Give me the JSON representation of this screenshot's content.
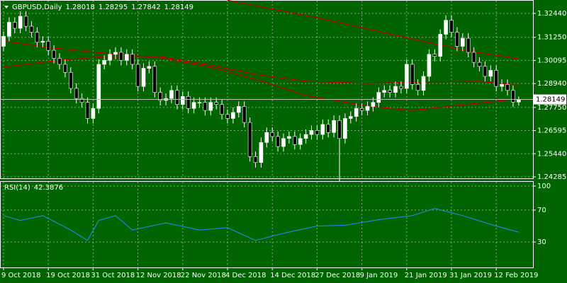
{
  "chart_data": [
    {
      "type": "candlestick",
      "title": "GBPUSD,Daily",
      "categories": [
        "9 Oct 2018",
        null,
        null,
        null,
        null,
        null,
        null,
        null,
        "19 Oct 2018",
        null,
        null,
        null,
        null,
        null,
        null,
        null,
        "31 Oct 2018",
        null,
        null,
        null,
        null,
        null,
        null,
        null,
        "12 Nov 2018",
        null,
        null,
        null,
        null,
        null,
        null,
        null,
        "22 Nov 2018",
        null,
        null,
        null,
        null,
        null,
        null,
        null,
        "4 Dec 2018",
        null,
        null,
        null,
        null,
        null,
        null,
        null,
        "14 Dec 2018",
        null,
        null,
        null,
        null,
        null,
        null,
        null,
        "27 Dec 2018",
        null,
        null,
        null,
        null,
        null,
        null,
        null,
        "9 Jan 2019",
        null,
        null,
        null,
        null,
        null,
        null,
        null,
        "21 Jan 2019",
        null,
        null,
        null,
        null,
        null,
        null,
        null,
        "31 Jan 2019",
        null,
        null,
        null,
        null,
        null,
        null,
        null,
        "12 Feb 2019",
        null,
        null,
        null,
        null
      ],
      "ohlc": [
        [
          1.308,
          1.3155,
          1.3055,
          1.313
        ],
        [
          1.313,
          1.3225,
          1.3105,
          1.32
        ],
        [
          1.32,
          1.3225,
          1.3145,
          1.317
        ],
        [
          1.317,
          1.3255,
          1.3145,
          1.323
        ],
        [
          1.323,
          1.3255,
          1.3155,
          1.318
        ],
        [
          1.318,
          1.3205,
          1.3125,
          1.315
        ],
        [
          1.315,
          1.3175,
          1.3075,
          1.31
        ],
        [
          1.31,
          1.313,
          1.3075,
          1.3105
        ],
        [
          1.3105,
          1.313,
          1.3035,
          1.306
        ],
        [
          1.306,
          1.3085,
          1.2995,
          1.302
        ],
        [
          1.302,
          1.3045,
          1.2965,
          1.299
        ],
        [
          1.299,
          1.3015,
          1.2925,
          1.295
        ],
        [
          1.295,
          1.2975,
          1.2845,
          1.287
        ],
        [
          1.287,
          1.2895,
          1.2795,
          1.282
        ],
        [
          1.282,
          1.2845,
          1.2775,
          1.28
        ],
        [
          1.28,
          1.2825,
          1.2695,
          1.272
        ],
        [
          1.272,
          1.2795,
          1.2695,
          1.277
        ],
        [
          1.277,
          1.3015,
          1.2745,
          1.299
        ],
        [
          1.299,
          1.3035,
          1.2965,
          1.301
        ],
        [
          1.301,
          1.3065,
          1.2985,
          1.304
        ],
        [
          1.304,
          1.3075,
          1.3015,
          1.305
        ],
        [
          1.305,
          1.3075,
          1.2985,
          1.301
        ],
        [
          1.301,
          1.3065,
          1.2985,
          1.304
        ],
        [
          1.304,
          1.3065,
          1.2965,
          1.299
        ],
        [
          1.299,
          1.3015,
          1.2855,
          1.288
        ],
        [
          1.288,
          1.2995,
          1.2855,
          1.297
        ],
        [
          1.297,
          1.3005,
          1.2945,
          1.298
        ],
        [
          1.298,
          1.3005,
          1.2825,
          1.285
        ],
        [
          1.285,
          1.2875,
          1.2785,
          1.281
        ],
        [
          1.281,
          1.2845,
          1.2785,
          1.282
        ],
        [
          1.282,
          1.2885,
          1.2795,
          1.286
        ],
        [
          1.286,
          1.2885,
          1.2765,
          1.279
        ],
        [
          1.279,
          1.2855,
          1.2765,
          1.283
        ],
        [
          1.283,
          1.2855,
          1.2745,
          1.277
        ],
        [
          1.277,
          1.2825,
          1.2745,
          1.28
        ],
        [
          1.28,
          1.2825,
          1.2775,
          1.28
        ],
        [
          1.28,
          1.2825,
          1.2735,
          1.276
        ],
        [
          1.276,
          1.2825,
          1.2735,
          1.28
        ],
        [
          1.28,
          1.2825,
          1.2765,
          1.279
        ],
        [
          1.279,
          1.2815,
          1.2715,
          1.274
        ],
        [
          1.274,
          1.2765,
          1.2695,
          1.272
        ],
        [
          1.272,
          1.2775,
          1.2695,
          1.275
        ],
        [
          1.275,
          1.2805,
          1.2725,
          1.278
        ],
        [
          1.278,
          1.2805,
          1.2675,
          1.27
        ],
        [
          1.27,
          1.2725,
          1.2505,
          1.253
        ],
        [
          1.253,
          1.2555,
          1.2475,
          1.25
        ],
        [
          1.25,
          1.2625,
          1.2475,
          1.26
        ],
        [
          1.26,
          1.2675,
          1.2575,
          1.265
        ],
        [
          1.265,
          1.2675,
          1.2605,
          1.263
        ],
        [
          1.263,
          1.2655,
          1.2555,
          1.258
        ],
        [
          1.258,
          1.2645,
          1.2555,
          1.262
        ],
        [
          1.262,
          1.2655,
          1.2595,
          1.263
        ],
        [
          1.263,
          1.2655,
          1.2565,
          1.259
        ],
        [
          1.259,
          1.2645,
          1.2565,
          1.262
        ],
        [
          1.262,
          1.2665,
          1.2595,
          1.264
        ],
        [
          1.264,
          1.2685,
          1.2615,
          1.266
        ],
        [
          1.266,
          1.2685,
          1.2615,
          1.264
        ],
        [
          1.264,
          1.2715,
          1.2615,
          1.269
        ],
        [
          1.269,
          1.2715,
          1.2625,
          1.265
        ],
        [
          1.265,
          1.2735,
          1.2625,
          1.271
        ],
        [
          1.271,
          1.2735,
          1.2405,
          1.262
        ],
        [
          1.262,
          1.2745,
          1.2595,
          1.272
        ],
        [
          1.272,
          1.2755,
          1.2695,
          1.273
        ],
        [
          1.273,
          1.2795,
          1.2705,
          1.277
        ],
        [
          1.277,
          1.2795,
          1.2735,
          1.276
        ],
        [
          1.276,
          1.2805,
          1.2735,
          1.278
        ],
        [
          1.278,
          1.2825,
          1.2755,
          1.28
        ],
        [
          1.28,
          1.2875,
          1.2775,
          1.285
        ],
        [
          1.285,
          1.2885,
          1.2825,
          1.286
        ],
        [
          1.286,
          1.2885,
          1.2825,
          1.285
        ],
        [
          1.285,
          1.2905,
          1.2825,
          1.288
        ],
        [
          1.288,
          1.2905,
          1.2845,
          1.287
        ],
        [
          1.287,
          1.3015,
          1.2845,
          1.299
        ],
        [
          1.299,
          1.3015,
          1.2865,
          1.289
        ],
        [
          1.289,
          1.2915,
          1.2835,
          1.286
        ],
        [
          1.286,
          1.2955,
          1.2835,
          1.293
        ],
        [
          1.293,
          1.3065,
          1.2905,
          1.304
        ],
        [
          1.304,
          1.3065,
          1.3005,
          1.303
        ],
        [
          1.303,
          1.3165,
          1.3005,
          1.314
        ],
        [
          1.314,
          1.3235,
          1.3115,
          1.321
        ],
        [
          1.321,
          1.3235,
          1.3125,
          1.315
        ],
        [
          1.315,
          1.3175,
          1.3055,
          1.308
        ],
        [
          1.308,
          1.3145,
          1.3055,
          1.312
        ],
        [
          1.312,
          1.3145,
          1.3025,
          1.305
        ],
        [
          1.305,
          1.3075,
          1.2975,
          1.3
        ],
        [
          1.3,
          1.3025,
          1.2955,
          1.298
        ],
        [
          1.298,
          1.3005,
          1.2905,
          1.293
        ],
        [
          1.293,
          1.2985,
          1.2905,
          1.296
        ],
        [
          1.296,
          1.2985,
          1.2855,
          1.288
        ],
        [
          1.288,
          1.2915,
          1.2855,
          1.289
        ],
        [
          1.289,
          1.2915,
          1.2835,
          1.286
        ],
        [
          1.286,
          1.2885,
          1.2777,
          1.2802
        ],
        [
          1.28018,
          1.28295,
          1.27842,
          1.28149
        ]
      ],
      "up_color": "#ffffff",
      "down_color": "#000000",
      "wick_color": "#ffffff",
      "overlays": [
        {
          "color": "#c00000",
          "x": [
            40,
            56,
            73,
            83,
            92
          ],
          "values": [
            1.331,
            1.3223,
            1.3117,
            1.3057,
            1.3018
          ]
        },
        {
          "color": "#c00000",
          "x": [
            0,
            9,
            18,
            28,
            37,
            45,
            54,
            65,
            75,
            85,
            92
          ],
          "values": [
            1.2976,
            1.3007,
            1.3029,
            1.3029,
            1.2986,
            1.294,
            1.2905,
            1.2895,
            1.2902,
            1.2905,
            1.2887
          ]
        },
        {
          "color": "#c00000",
          "x": [
            0,
            9,
            18,
            28,
            37,
            45,
            54,
            65,
            73,
            80,
            92
          ],
          "values": [
            1.3106,
            1.3071,
            1.3046,
            1.3022,
            1.2976,
            1.2916,
            1.2835,
            1.2782,
            1.276,
            1.2782,
            1.2817
          ]
        }
      ],
      "ylim": [
        1.24214,
        1.33111
      ],
      "yticks": [
        {
          "value": 1.3244,
          "label": "1.32440"
        },
        {
          "value": 1.3125,
          "label": "1.31250"
        },
        {
          "value": 1.30095,
          "label": "1.30095"
        },
        {
          "value": 1.2894,
          "label": "1.28940"
        },
        {
          "value": 1.2775,
          "label": "1.27750"
        },
        {
          "value": 1.26595,
          "label": "1.26595"
        },
        {
          "value": 1.2544,
          "label": "1.25440"
        },
        {
          "value": 1.24285,
          "label": "1.24285"
        }
      ],
      "grid": true,
      "price_line": true
    },
    {
      "type": "line",
      "title": "RSI(14)",
      "x": [
        0,
        3,
        7,
        12,
        15,
        17,
        20,
        23,
        29,
        35,
        40,
        45,
        50,
        56,
        61,
        67,
        73,
        77,
        82,
        88,
        92
      ],
      "values": [
        63,
        57,
        63,
        45,
        32,
        57,
        63,
        45,
        54,
        45,
        48,
        32,
        41,
        50,
        51,
        58,
        63,
        72,
        63,
        50,
        42.3876
      ],
      "color": "#1e90ff",
      "ylim": [
        0,
        100
      ],
      "yticks": [
        100,
        70,
        30
      ],
      "grid": true
    }
  ]
}
